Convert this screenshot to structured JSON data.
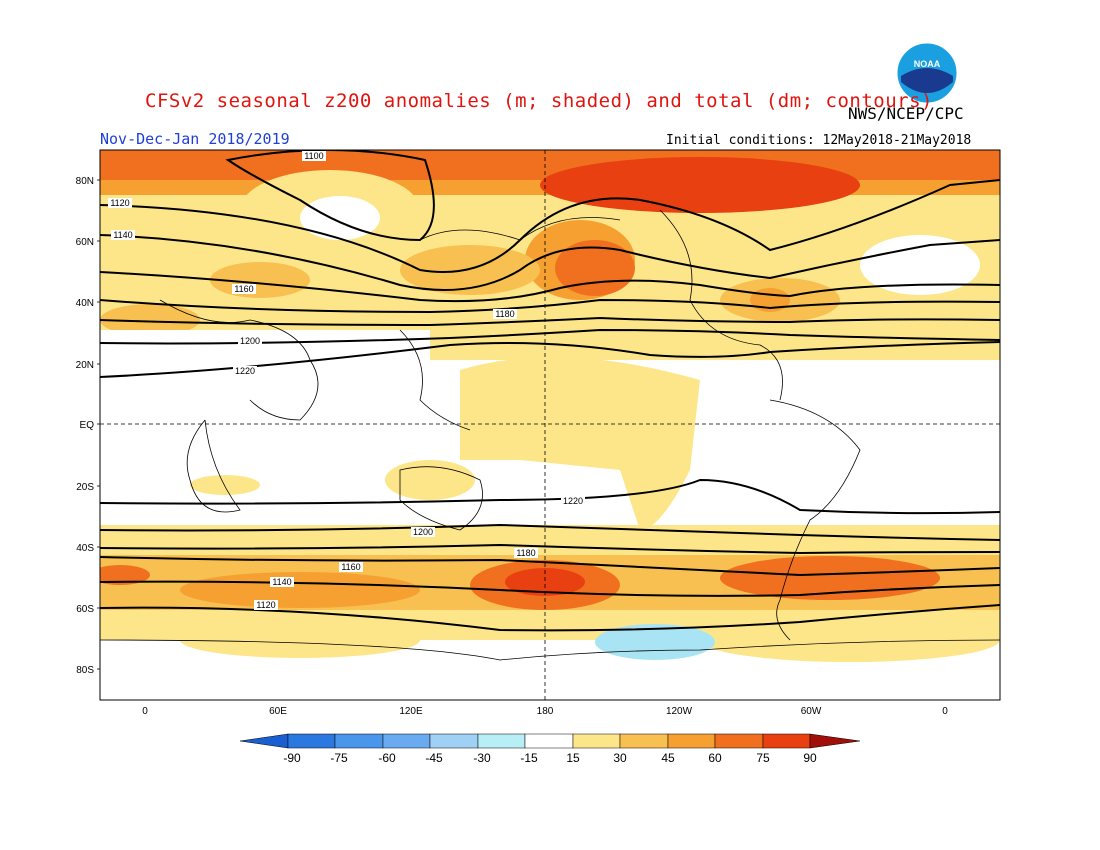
{
  "title": "CFSv2 seasonal z200 anomalies (m; shaded) and total (dm; contours)",
  "agency": "NWS/NCEP/CPC",
  "logo_text": "NOAA",
  "period": "Nov-Dec-Jan 2018/2019",
  "initial_conditions": "Initial conditions: 12May2018-21May2018",
  "axes": {
    "lat_labels": [
      "80N",
      "60N",
      "40N",
      "20N",
      "EQ",
      "20S",
      "40S",
      "60S",
      "80S"
    ],
    "lon_labels": [
      "0",
      "60E",
      "120E",
      "180",
      "120W",
      "60W",
      "0"
    ]
  },
  "colorbar": {
    "labels": [
      "-90",
      "-75",
      "-60",
      "-45",
      "-30",
      "-15",
      "15",
      "30",
      "45",
      "60",
      "75",
      "90"
    ],
    "colors": [
      "#1a5fd0",
      "#2a78e0",
      "#4a96ea",
      "#7ab8f0",
      "#a8e4f4",
      "#ffffff",
      "#fde68a",
      "#f8c050",
      "#f5a030",
      "#f07020",
      "#e84010",
      "#c8200a",
      "#a01008"
    ]
  },
  "contours": [
    {
      "label": "1100",
      "lat": 82
    },
    {
      "label": "1120",
      "lat": 70
    },
    {
      "label": "1140",
      "lat": 58
    },
    {
      "label": "1160",
      "lat": 42
    },
    {
      "label": "1180",
      "lat": 38
    },
    {
      "label": "1200",
      "lat": 30
    },
    {
      "label": "1220",
      "lat": 20
    },
    {
      "label": "1220",
      "lat": -26
    },
    {
      "label": "1200",
      "lat": -36
    },
    {
      "label": "1180",
      "lat": -44
    },
    {
      "label": "1160",
      "lat": -48
    },
    {
      "label": "1140",
      "lat": -53
    },
    {
      "label": "1120",
      "lat": -59
    }
  ],
  "colors": {
    "title": "#e0140f",
    "period": "#1f3fd8"
  }
}
